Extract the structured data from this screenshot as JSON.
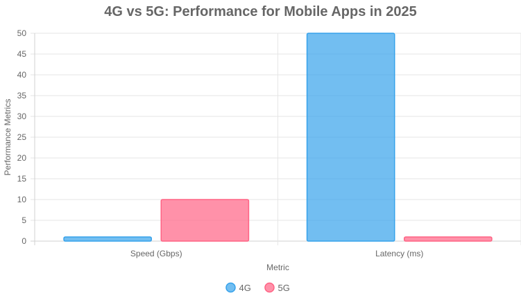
{
  "chart_data": {
    "type": "bar",
    "title": "4G vs 5G: Performance for Mobile Apps in 2025",
    "xlabel": "Metric",
    "ylabel": "Performance Metrics",
    "categories": [
      "Speed (Gbps)",
      "Latency (ms)"
    ],
    "series": [
      {
        "name": "4G",
        "values": [
          1,
          50
        ],
        "color": "#36A2EB",
        "fill": "rgba(54,162,235,0.7)"
      },
      {
        "name": "5G",
        "values": [
          10,
          1
        ],
        "color": "#FF6384",
        "fill": "rgba(255,99,132,0.7)"
      }
    ],
    "ylim": [
      0,
      50
    ],
    "yticks": [
      "0",
      "5",
      "10",
      "15",
      "20",
      "25",
      "30",
      "35",
      "40",
      "45",
      "50"
    ],
    "grid": true,
    "legend_position": "bottom"
  }
}
